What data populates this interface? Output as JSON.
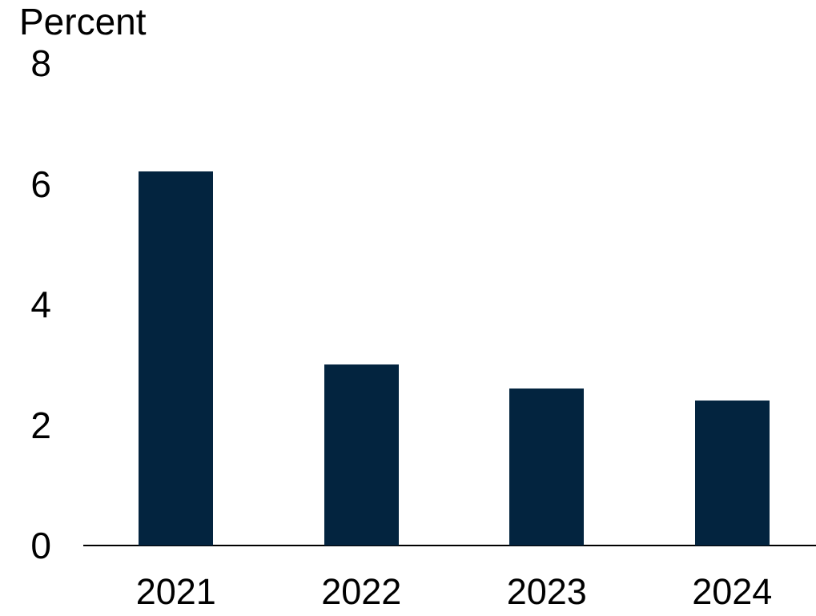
{
  "chart_data": {
    "type": "bar",
    "title": "",
    "xlabel": "",
    "ylabel": "Percent",
    "categories": [
      "2021",
      "2022",
      "2023",
      "2024"
    ],
    "values": [
      6.2,
      3.0,
      2.6,
      2.4
    ],
    "series": [
      {
        "name": "Percent",
        "values": [
          6.2,
          3.0,
          2.6,
          2.4
        ]
      }
    ],
    "yticks": [
      "0",
      "2",
      "4",
      "6",
      "8"
    ],
    "ytick_values": [
      0,
      2,
      4,
      6,
      8
    ],
    "ylim": [
      0,
      8
    ],
    "grid": false,
    "legend_position": "none",
    "colors": {
      "bar": "#03243f",
      "axis": "#000000",
      "text": "#000000",
      "background": "#ffffff"
    }
  }
}
